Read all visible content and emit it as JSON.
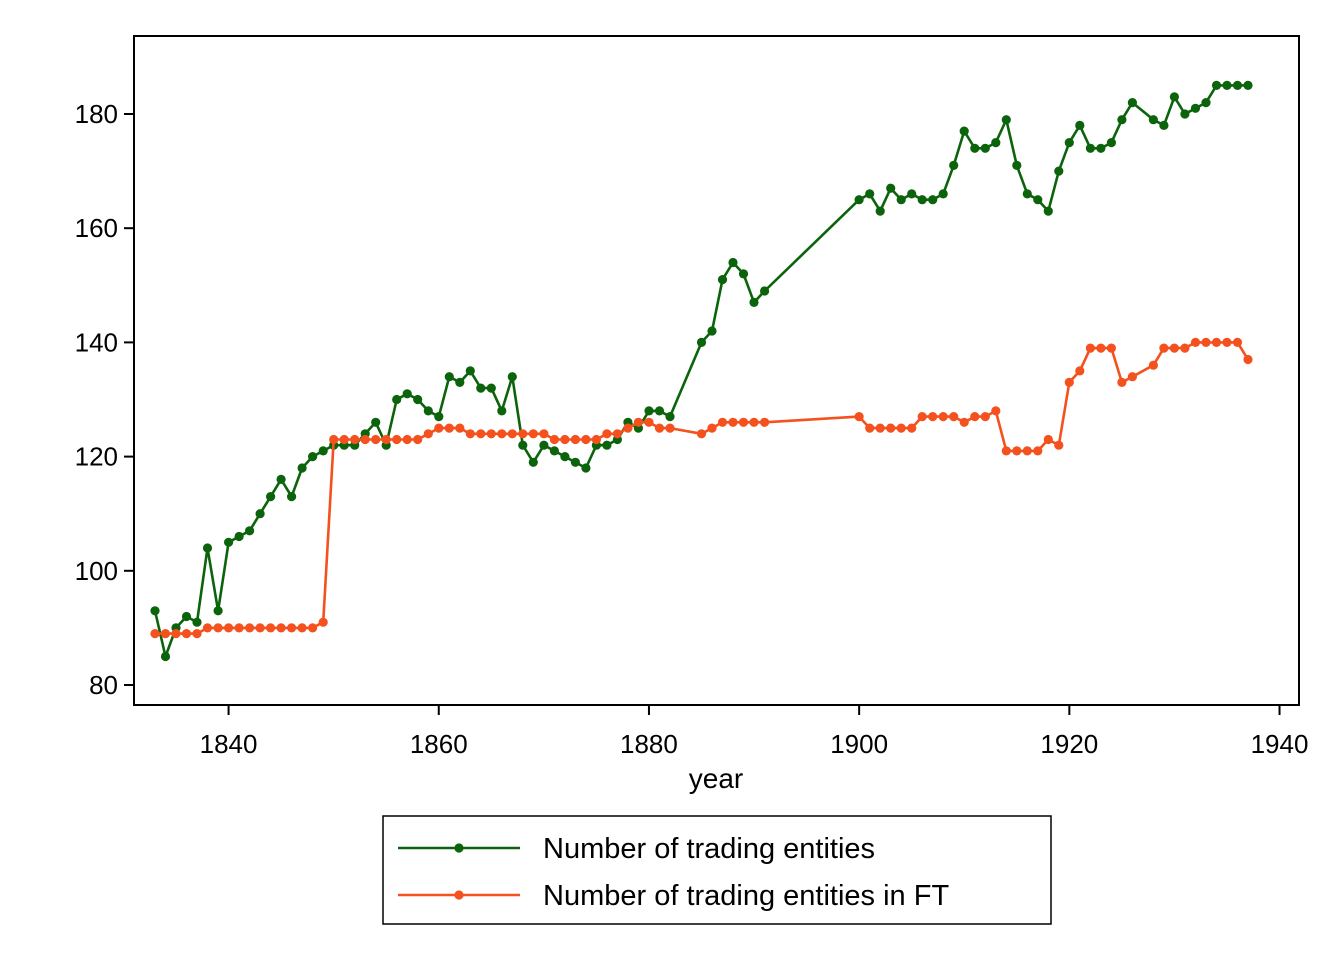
{
  "chart_data": {
    "type": "line",
    "title": "",
    "xlabel": "year",
    "ylabel": "",
    "xlim": [
      1833,
      1937
    ],
    "ylim": [
      77,
      193
    ],
    "xticks": [
      1840,
      1860,
      1880,
      1900,
      1920,
      1940
    ],
    "yticks": [
      80,
      100,
      120,
      140,
      160,
      180
    ],
    "grid": false,
    "legend_position": "bottom-center",
    "series": [
      {
        "name": "Number of trading entities",
        "color": "#0b640b",
        "points": [
          [
            1833,
            93
          ],
          [
            1834,
            85
          ],
          [
            1835,
            90
          ],
          [
            1836,
            92
          ],
          [
            1837,
            91
          ],
          [
            1838,
            104
          ],
          [
            1839,
            93
          ],
          [
            1840,
            105
          ],
          [
            1841,
            106
          ],
          [
            1842,
            107
          ],
          [
            1843,
            110
          ],
          [
            1844,
            113
          ],
          [
            1845,
            116
          ],
          [
            1846,
            113
          ],
          [
            1847,
            118
          ],
          [
            1848,
            120
          ],
          [
            1849,
            121
          ],
          [
            1850,
            122
          ],
          [
            1851,
            122
          ],
          [
            1852,
            122
          ],
          [
            1853,
            124
          ],
          [
            1854,
            126
          ],
          [
            1855,
            122
          ],
          [
            1856,
            130
          ],
          [
            1857,
            131
          ],
          [
            1858,
            130
          ],
          [
            1859,
            128
          ],
          [
            1860,
            127
          ],
          [
            1861,
            134
          ],
          [
            1862,
            133
          ],
          [
            1863,
            135
          ],
          [
            1864,
            132
          ],
          [
            1865,
            132
          ],
          [
            1866,
            128
          ],
          [
            1867,
            134
          ],
          [
            1868,
            122
          ],
          [
            1869,
            119
          ],
          [
            1870,
            122
          ],
          [
            1871,
            121
          ],
          [
            1872,
            120
          ],
          [
            1873,
            119
          ],
          [
            1874,
            118
          ],
          [
            1875,
            122
          ],
          [
            1876,
            122
          ],
          [
            1877,
            123
          ],
          [
            1878,
            126
          ],
          [
            1879,
            125
          ],
          [
            1880,
            128
          ],
          [
            1881,
            128
          ],
          [
            1882,
            127
          ],
          [
            1885,
            140
          ],
          [
            1886,
            142
          ],
          [
            1887,
            151
          ],
          [
            1888,
            154
          ],
          [
            1889,
            152
          ],
          [
            1890,
            147
          ],
          [
            1891,
            149
          ],
          [
            1900,
            165
          ],
          [
            1901,
            166
          ],
          [
            1902,
            163
          ],
          [
            1903,
            167
          ],
          [
            1904,
            165
          ],
          [
            1905,
            166
          ],
          [
            1906,
            165
          ],
          [
            1907,
            165
          ],
          [
            1908,
            166
          ],
          [
            1909,
            171
          ],
          [
            1910,
            177
          ],
          [
            1911,
            174
          ],
          [
            1912,
            174
          ],
          [
            1913,
            175
          ],
          [
            1914,
            179
          ],
          [
            1915,
            171
          ],
          [
            1916,
            166
          ],
          [
            1917,
            165
          ],
          [
            1918,
            163
          ],
          [
            1919,
            170
          ],
          [
            1920,
            175
          ],
          [
            1921,
            178
          ],
          [
            1922,
            174
          ],
          [
            1923,
            174
          ],
          [
            1924,
            175
          ],
          [
            1925,
            179
          ],
          [
            1926,
            182
          ],
          [
            1928,
            179
          ],
          [
            1929,
            178
          ],
          [
            1930,
            183
          ],
          [
            1931,
            180
          ],
          [
            1932,
            181
          ],
          [
            1933,
            182
          ],
          [
            1934,
            185
          ],
          [
            1935,
            185
          ],
          [
            1936,
            185
          ],
          [
            1937,
            185
          ]
        ]
      },
      {
        "name": "Number of trading entities in FT",
        "color": "#f4511e",
        "points": [
          [
            1833,
            89
          ],
          [
            1834,
            89
          ],
          [
            1835,
            89
          ],
          [
            1836,
            89
          ],
          [
            1837,
            89
          ],
          [
            1838,
            90
          ],
          [
            1839,
            90
          ],
          [
            1840,
            90
          ],
          [
            1841,
            90
          ],
          [
            1842,
            90
          ],
          [
            1843,
            90
          ],
          [
            1844,
            90
          ],
          [
            1845,
            90
          ],
          [
            1846,
            90
          ],
          [
            1847,
            90
          ],
          [
            1848,
            90
          ],
          [
            1849,
            91
          ],
          [
            1850,
            123
          ],
          [
            1851,
            123
          ],
          [
            1852,
            123
          ],
          [
            1853,
            123
          ],
          [
            1854,
            123
          ],
          [
            1855,
            123
          ],
          [
            1856,
            123
          ],
          [
            1857,
            123
          ],
          [
            1858,
            123
          ],
          [
            1859,
            124
          ],
          [
            1860,
            125
          ],
          [
            1861,
            125
          ],
          [
            1862,
            125
          ],
          [
            1863,
            124
          ],
          [
            1864,
            124
          ],
          [
            1865,
            124
          ],
          [
            1866,
            124
          ],
          [
            1867,
            124
          ],
          [
            1868,
            124
          ],
          [
            1869,
            124
          ],
          [
            1870,
            124
          ],
          [
            1871,
            123
          ],
          [
            1872,
            123
          ],
          [
            1873,
            123
          ],
          [
            1874,
            123
          ],
          [
            1875,
            123
          ],
          [
            1876,
            124
          ],
          [
            1877,
            124
          ],
          [
            1878,
            125
          ],
          [
            1879,
            126
          ],
          [
            1880,
            126
          ],
          [
            1881,
            125
          ],
          [
            1882,
            125
          ],
          [
            1885,
            124
          ],
          [
            1886,
            125
          ],
          [
            1887,
            126
          ],
          [
            1888,
            126
          ],
          [
            1889,
            126
          ],
          [
            1890,
            126
          ],
          [
            1891,
            126
          ],
          [
            1900,
            127
          ],
          [
            1901,
            125
          ],
          [
            1902,
            125
          ],
          [
            1903,
            125
          ],
          [
            1904,
            125
          ],
          [
            1905,
            125
          ],
          [
            1906,
            127
          ],
          [
            1907,
            127
          ],
          [
            1908,
            127
          ],
          [
            1909,
            127
          ],
          [
            1910,
            126
          ],
          [
            1911,
            127
          ],
          [
            1912,
            127
          ],
          [
            1913,
            128
          ],
          [
            1914,
            121
          ],
          [
            1915,
            121
          ],
          [
            1916,
            121
          ],
          [
            1917,
            121
          ],
          [
            1918,
            123
          ],
          [
            1919,
            122
          ],
          [
            1920,
            133
          ],
          [
            1921,
            135
          ],
          [
            1922,
            139
          ],
          [
            1923,
            139
          ],
          [
            1924,
            139
          ],
          [
            1925,
            133
          ],
          [
            1926,
            134
          ],
          [
            1928,
            136
          ],
          [
            1929,
            139
          ],
          [
            1930,
            139
          ],
          [
            1931,
            139
          ],
          [
            1932,
            140
          ],
          [
            1933,
            140
          ],
          [
            1934,
            140
          ],
          [
            1935,
            140
          ],
          [
            1936,
            140
          ],
          [
            1937,
            137
          ]
        ]
      }
    ]
  }
}
